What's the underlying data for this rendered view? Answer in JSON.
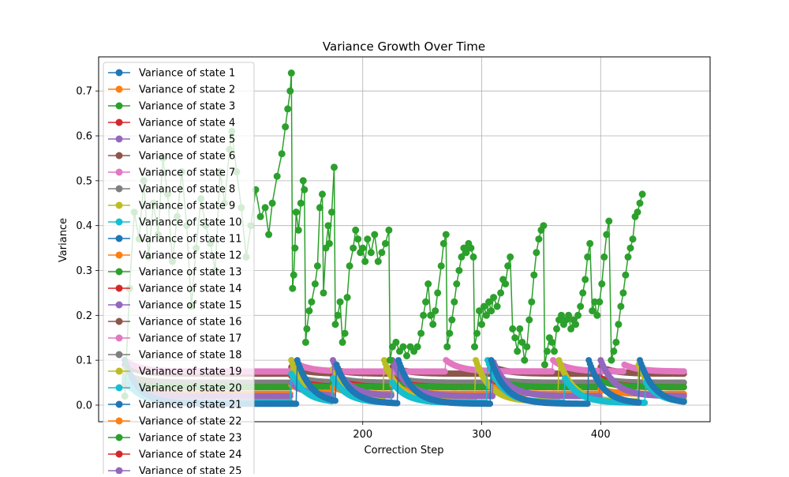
{
  "chart_data": {
    "type": "line",
    "title": "Variance Growth Over Time",
    "xlabel": "Correction Step",
    "ylabel": "Variance",
    "xlim": [
      -22,
      492
    ],
    "ylim": [
      -0.037,
      0.776
    ],
    "x_ticks": [
      200,
      300,
      400
    ],
    "x_tick_labels": [
      "200",
      "300",
      "400"
    ],
    "y_ticks": [
      0.0,
      0.1,
      0.2,
      0.3,
      0.4,
      0.5,
      0.6,
      0.7
    ],
    "y_tick_labels": [
      "0.0",
      "0.1",
      "0.2",
      "0.3",
      "0.4",
      "0.5",
      "0.6",
      "0.7"
    ],
    "grid": true,
    "legend_position": "top-left",
    "marker": "circle",
    "series": [
      {
        "name": "Variance of state 1",
        "color": "#1f77b4"
      },
      {
        "name": "Variance of state 2",
        "color": "#ff7f0e"
      },
      {
        "name": "Variance of state 3",
        "color": "#2ca02c",
        "points": [
          [
            0,
            0.02
          ],
          [
            4,
            0.26
          ],
          [
            8,
            0.43
          ],
          [
            12,
            0.37
          ],
          [
            16,
            0.5
          ],
          [
            20,
            0.33
          ],
          [
            24,
            0.45
          ],
          [
            28,
            0.38
          ],
          [
            32,
            0.55
          ],
          [
            36,
            0.47
          ],
          [
            40,
            0.32
          ],
          [
            44,
            0.42
          ],
          [
            48,
            0.52
          ],
          [
            52,
            0.4
          ],
          [
            56,
            0.22
          ],
          [
            60,
            0.35
          ],
          [
            64,
            0.46
          ],
          [
            68,
            0.4
          ],
          [
            72,
            0.36
          ],
          [
            76,
            0.3
          ],
          [
            80,
            0.52
          ],
          [
            84,
            0.45
          ],
          [
            88,
            0.57
          ],
          [
            90,
            0.61
          ],
          [
            94,
            0.52
          ],
          [
            98,
            0.44
          ],
          [
            102,
            0.33
          ],
          [
            106,
            0.4
          ],
          [
            110,
            0.48
          ],
          [
            114,
            0.42
          ],
          [
            118,
            0.44
          ],
          [
            121,
            0.38
          ],
          [
            124,
            0.45
          ],
          [
            128,
            0.51
          ],
          [
            132,
            0.56
          ],
          [
            135,
            0.62
          ],
          [
            137,
            0.66
          ],
          [
            139,
            0.7
          ],
          [
            140,
            0.74
          ],
          [
            141,
            0.26
          ],
          [
            142,
            0.29
          ],
          [
            143,
            0.35
          ],
          [
            144,
            0.43
          ],
          [
            146,
            0.39
          ],
          [
            148,
            0.45
          ],
          [
            150,
            0.5
          ],
          [
            151,
            0.48
          ],
          [
            152,
            0.14
          ],
          [
            153,
            0.17
          ],
          [
            155,
            0.21
          ],
          [
            157,
            0.23
          ],
          [
            160,
            0.27
          ],
          [
            162,
            0.31
          ],
          [
            164,
            0.44
          ],
          [
            166,
            0.47
          ],
          [
            167,
            0.25
          ],
          [
            169,
            0.35
          ],
          [
            171,
            0.4
          ],
          [
            172,
            0.36
          ],
          [
            174,
            0.43
          ],
          [
            176,
            0.53
          ],
          [
            177,
            0.18
          ],
          [
            179,
            0.2
          ],
          [
            181,
            0.23
          ],
          [
            183,
            0.14
          ],
          [
            185,
            0.16
          ],
          [
            187,
            0.24
          ],
          [
            189,
            0.31
          ],
          [
            192,
            0.35
          ],
          [
            194,
            0.39
          ],
          [
            196,
            0.37
          ],
          [
            198,
            0.34
          ],
          [
            200,
            0.35
          ],
          [
            202,
            0.32
          ],
          [
            204,
            0.37
          ],
          [
            207,
            0.34
          ],
          [
            210,
            0.38
          ],
          [
            213,
            0.32
          ],
          [
            216,
            0.34
          ],
          [
            219,
            0.36
          ],
          [
            222,
            0.39
          ],
          [
            223,
            0.1
          ],
          [
            225,
            0.13
          ],
          [
            228,
            0.14
          ],
          [
            231,
            0.12
          ],
          [
            234,
            0.13
          ],
          [
            237,
            0.11
          ],
          [
            240,
            0.13
          ],
          [
            243,
            0.12
          ],
          [
            246,
            0.13
          ],
          [
            249,
            0.16
          ],
          [
            251,
            0.2
          ],
          [
            253,
            0.23
          ],
          [
            255,
            0.27
          ],
          [
            257,
            0.2
          ],
          [
            259,
            0.18
          ],
          [
            261,
            0.21
          ],
          [
            263,
            0.25
          ],
          [
            266,
            0.31
          ],
          [
            268,
            0.36
          ],
          [
            270,
            0.38
          ],
          [
            271,
            0.13
          ],
          [
            273,
            0.16
          ],
          [
            275,
            0.19
          ],
          [
            277,
            0.23
          ],
          [
            279,
            0.27
          ],
          [
            281,
            0.3
          ],
          [
            283,
            0.33
          ],
          [
            285,
            0.35
          ],
          [
            287,
            0.34
          ],
          [
            289,
            0.36
          ],
          [
            291,
            0.35
          ],
          [
            293,
            0.33
          ],
          [
            294,
            0.13
          ],
          [
            296,
            0.16
          ],
          [
            298,
            0.21
          ],
          [
            300,
            0.18
          ],
          [
            302,
            0.22
          ],
          [
            304,
            0.2
          ],
          [
            306,
            0.23
          ],
          [
            308,
            0.21
          ],
          [
            310,
            0.24
          ],
          [
            313,
            0.22
          ],
          [
            316,
            0.25
          ],
          [
            318,
            0.28
          ],
          [
            320,
            0.27
          ],
          [
            322,
            0.31
          ],
          [
            324,
            0.33
          ],
          [
            326,
            0.17
          ],
          [
            328,
            0.15
          ],
          [
            330,
            0.12
          ],
          [
            332,
            0.17
          ],
          [
            334,
            0.14
          ],
          [
            336,
            0.1
          ],
          [
            338,
            0.13
          ],
          [
            340,
            0.19
          ],
          [
            342,
            0.23
          ],
          [
            344,
            0.29
          ],
          [
            346,
            0.34
          ],
          [
            348,
            0.37
          ],
          [
            350,
            0.39
          ],
          [
            352,
            0.4
          ],
          [
            353,
            0.09
          ],
          [
            355,
            0.12
          ],
          [
            357,
            0.15
          ],
          [
            359,
            0.14
          ],
          [
            361,
            0.12
          ],
          [
            363,
            0.17
          ],
          [
            365,
            0.19
          ],
          [
            367,
            0.2
          ],
          [
            369,
            0.18
          ],
          [
            371,
            0.19
          ],
          [
            373,
            0.2
          ],
          [
            375,
            0.17
          ],
          [
            377,
            0.19
          ],
          [
            379,
            0.18
          ],
          [
            381,
            0.2
          ],
          [
            383,
            0.22
          ],
          [
            385,
            0.25
          ],
          [
            387,
            0.28
          ],
          [
            389,
            0.33
          ],
          [
            391,
            0.36
          ],
          [
            393,
            0.21
          ],
          [
            395,
            0.23
          ],
          [
            397,
            0.2
          ],
          [
            399,
            0.23
          ],
          [
            401,
            0.27
          ],
          [
            403,
            0.33
          ],
          [
            405,
            0.38
          ],
          [
            407,
            0.41
          ],
          [
            409,
            0.1
          ],
          [
            411,
            0.12
          ],
          [
            413,
            0.14
          ],
          [
            415,
            0.18
          ],
          [
            417,
            0.22
          ],
          [
            419,
            0.25
          ],
          [
            421,
            0.29
          ],
          [
            423,
            0.33
          ],
          [
            425,
            0.35
          ],
          [
            427,
            0.37
          ],
          [
            429,
            0.42
          ],
          [
            431,
            0.43
          ],
          [
            433,
            0.45
          ],
          [
            435,
            0.47
          ]
        ]
      },
      {
        "name": "Variance of state 4",
        "color": "#d62728"
      },
      {
        "name": "Variance of state 5",
        "color": "#9467bd"
      },
      {
        "name": "Variance of state 6",
        "color": "#8c564b"
      },
      {
        "name": "Variance of state 7",
        "color": "#e377c2"
      },
      {
        "name": "Variance of state 8",
        "color": "#7f7f7f"
      },
      {
        "name": "Variance of state 9",
        "color": "#bcbd22"
      },
      {
        "name": "Variance of state 10",
        "color": "#17becf"
      },
      {
        "name": "Variance of state 11",
        "color": "#1f77b4"
      },
      {
        "name": "Variance of state 12",
        "color": "#ff7f0e"
      },
      {
        "name": "Variance of state 13",
        "color": "#2ca02c"
      },
      {
        "name": "Variance of state 14",
        "color": "#d62728"
      },
      {
        "name": "Variance of state 15",
        "color": "#9467bd"
      },
      {
        "name": "Variance of state 16",
        "color": "#8c564b"
      },
      {
        "name": "Variance of state 17",
        "color": "#e377c2"
      },
      {
        "name": "Variance of state 18",
        "color": "#7f7f7f"
      },
      {
        "name": "Variance of state 19",
        "color": "#bcbd22"
      },
      {
        "name": "Variance of state 20",
        "color": "#17becf"
      },
      {
        "name": "Variance of state 21",
        "color": "#1f77b4"
      },
      {
        "name": "Variance of state 22",
        "color": "#ff7f0e"
      },
      {
        "name": "Variance of state 23",
        "color": "#2ca02c"
      },
      {
        "name": "Variance of state 24",
        "color": "#d62728"
      },
      {
        "name": "Variance of state 25",
        "color": "#9467bd"
      }
    ],
    "steady_series": [
      {
        "color": "#7f7f7f",
        "x_end": 470,
        "resets": [
          [
            0,
            0.07
          ],
          [
            140,
            0.07
          ],
          [
            175,
            0.065
          ],
          [
            225,
            0.065
          ],
          [
            310,
            0.06
          ],
          [
            400,
            0.06
          ]
        ],
        "floor": 0.05
      },
      {
        "color": "#8c564b",
        "x_end": 470,
        "resets": [
          [
            0,
            0.09
          ],
          [
            140,
            0.085
          ],
          [
            175,
            0.08
          ],
          [
            225,
            0.085
          ],
          [
            310,
            0.085
          ],
          [
            400,
            0.085
          ]
        ],
        "floor": 0.07
      },
      {
        "color": "#e377c2",
        "x_end": 470,
        "resets": [
          [
            0,
            0.1
          ],
          [
            140,
            0.1
          ],
          [
            175,
            0.075
          ],
          [
            270,
            0.1
          ],
          [
            360,
            0.1
          ],
          [
            420,
            0.09
          ]
        ],
        "floor": 0.075
      },
      {
        "color": "#d62728",
        "x_end": 470,
        "resets": [
          [
            0,
            0.06
          ],
          [
            140,
            0.065
          ],
          [
            175,
            0.065
          ],
          [
            225,
            0.06
          ],
          [
            310,
            0.05
          ],
          [
            400,
            0.06
          ]
        ],
        "floor": 0.04
      },
      {
        "color": "#2ca02c",
        "x_end": 470,
        "resets": [
          [
            0,
            0.055
          ],
          [
            140,
            0.05
          ],
          [
            175,
            0.05
          ],
          [
            225,
            0.05
          ],
          [
            310,
            0.06
          ],
          [
            400,
            0.055
          ]
        ],
        "floor": 0.04
      },
      {
        "color": "#ff7f0e",
        "x_end": 470,
        "resets": [
          [
            0,
            0.045
          ],
          [
            140,
            0.045
          ],
          [
            175,
            0.04
          ],
          [
            225,
            0.045
          ],
          [
            310,
            0.04
          ],
          [
            400,
            0.035
          ]
        ],
        "floor": 0.025
      },
      {
        "color": "#bcbd22",
        "x_end": 470,
        "resets": [
          [
            0,
            0.08
          ],
          [
            140,
            0.1
          ],
          [
            175,
            0.08
          ],
          [
            218,
            0.1
          ],
          [
            295,
            0.1
          ],
          [
            365,
            0.1
          ],
          [
            432,
            0.09
          ]
        ],
        "floor": 0.008
      },
      {
        "color": "#9467bd",
        "x_end": 470,
        "resets": [
          [
            0,
            0.05
          ],
          [
            140,
            0.05
          ],
          [
            175,
            0.1
          ],
          [
            225,
            0.1
          ],
          [
            310,
            0.095
          ],
          [
            400,
            0.1
          ]
        ],
        "floor": 0.02
      },
      {
        "color": "#17becf",
        "x_end": 470,
        "resets": [
          [
            0,
            0.06
          ],
          [
            140,
            0.07
          ],
          [
            175,
            0.06
          ],
          [
            225,
            0.05
          ],
          [
            305,
            0.1
          ],
          [
            370,
            0.06
          ],
          [
            438,
            0.05
          ]
        ],
        "floor": 0.005
      },
      {
        "color": "#1f77b4",
        "x_end": 470,
        "resets": [
          [
            0,
            0.1
          ],
          [
            145,
            0.1
          ],
          [
            178,
            0.09
          ],
          [
            230,
            0.1
          ],
          [
            308,
            0.1
          ],
          [
            390,
            0.1
          ],
          [
            433,
            0.1
          ]
        ],
        "floor": 0.003
      }
    ]
  }
}
